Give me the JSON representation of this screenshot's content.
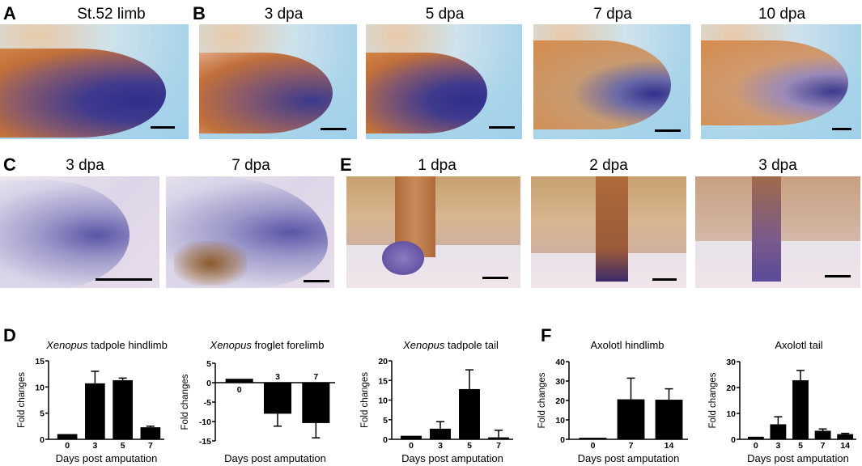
{
  "panels": {
    "A": {
      "label": "A",
      "titles": [
        "St.52 limb"
      ]
    },
    "B": {
      "label": "B",
      "titles": [
        "3 dpa",
        "5 dpa",
        "7 dpa",
        "10 dpa"
      ]
    },
    "C": {
      "label": "C",
      "titles": [
        "3 dpa",
        "7 dpa"
      ]
    },
    "E": {
      "label": "E",
      "titles": [
        "1 dpa",
        "2 dpa",
        "3 dpa"
      ]
    },
    "D": {
      "label": "D"
    },
    "F": {
      "label": "F"
    }
  },
  "chart_data": [
    {
      "type": "bar",
      "title_italic": "Xenopus",
      "title": "tadpole hindlimb",
      "xlabel": "Days post amputation",
      "ylabel": "Fold changes",
      "categories": [
        "0",
        "3",
        "5",
        "7"
      ],
      "values": [
        1.0,
        10.7,
        11.3,
        2.3
      ],
      "error_upper": [
        1.0,
        13.0,
        11.7,
        2.5
      ],
      "ylim": [
        0,
        15
      ],
      "yticks": [
        0,
        5,
        10,
        15
      ],
      "grid": false,
      "bar_color": "#000000"
    },
    {
      "type": "bar",
      "title_italic": "Xenopus",
      "title": "froglet forelimb",
      "xlabel": "Days post amputation",
      "ylabel": "Fold changes",
      "categories": [
        "0",
        "3",
        "7"
      ],
      "values": [
        1.0,
        -8.0,
        -10.4
      ],
      "error_upper": [
        1.0,
        -11.2,
        -14.2
      ],
      "ylim": [
        -15,
        5
      ],
      "yticks": [
        5,
        0,
        -5,
        -10,
        -15
      ],
      "grid": false,
      "bar_color": "#000000"
    },
    {
      "type": "bar",
      "title_italic": "Xenopus",
      "title": "tadpole tail",
      "xlabel": "Days post amputation",
      "ylabel": "Fold changes",
      "categories": [
        "0",
        "3",
        "5",
        "7"
      ],
      "values": [
        0.9,
        2.7,
        12.8,
        0.5
      ],
      "error_upper": [
        0.9,
        4.5,
        17.7,
        2.3
      ],
      "ylim": [
        0,
        20
      ],
      "yticks": [
        0,
        5,
        10,
        15,
        20
      ],
      "grid": false,
      "bar_color": "#000000"
    },
    {
      "type": "bar",
      "title_italic": "",
      "title": "Axolotl hindlimb",
      "xlabel": "Days post amputation",
      "ylabel": "Fold changes",
      "categories": [
        "0",
        "7",
        "14"
      ],
      "values": [
        0.8,
        20.6,
        20.4
      ],
      "error_upper": [
        0.8,
        31.5,
        26.0
      ],
      "ylim": [
        0,
        40
      ],
      "yticks": [
        0,
        10,
        20,
        30,
        40
      ],
      "grid": false,
      "bar_color": "#000000"
    },
    {
      "type": "bar",
      "title_italic": "",
      "title": "Axolotl tail",
      "xlabel": "Days post amputation",
      "ylabel": "Fold changes",
      "categories": [
        "0",
        "3",
        "5",
        "7",
        "14"
      ],
      "values": [
        1.0,
        5.8,
        22.8,
        3.3,
        2.0
      ],
      "error_upper": [
        1.0,
        8.7,
        26.6,
        4.0,
        2.3
      ],
      "ylim": [
        0,
        30
      ],
      "yticks": [
        0,
        10,
        20,
        30
      ],
      "grid": false,
      "bar_color": "#000000"
    }
  ]
}
